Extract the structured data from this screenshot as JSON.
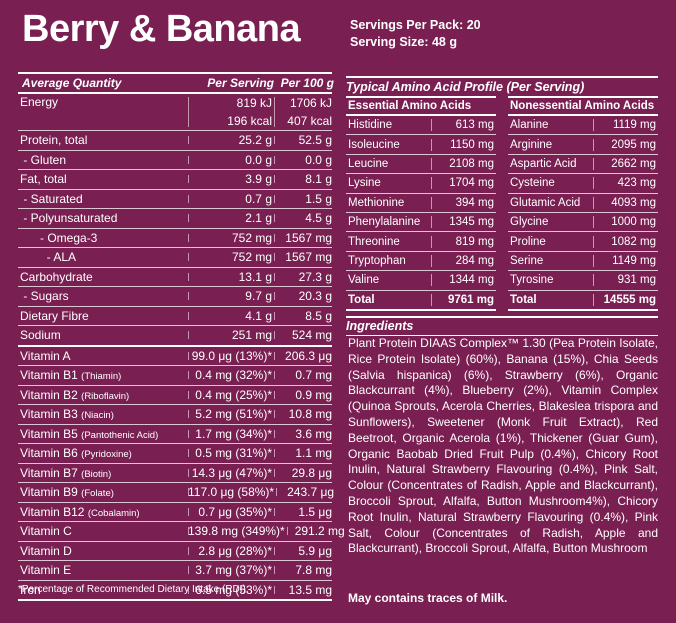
{
  "title": "Berry & Banana",
  "servings_per_pack": "Servings Per Pack: 20",
  "serving_size": "Serving Size: 48 g",
  "nutrition": {
    "headers": [
      "Average Quantity",
      "Per Serving",
      "Per 100 g"
    ],
    "rows": [
      {
        "name": "Energy",
        "serving": [
          "819 kJ",
          "196 kcal"
        ],
        "per100": [
          "1706 kJ",
          "407 kcal"
        ],
        "tall": true
      },
      {
        "name": "Protein, total",
        "serving": "25.2 g",
        "per100": "52.5 g"
      },
      {
        "name": " - Gluten",
        "serving": "0.0 g",
        "per100": "0.0 g"
      },
      {
        "name": "Fat, total",
        "serving": "3.9 g",
        "per100": "8.1 g"
      },
      {
        "name": " - Saturated",
        "serving": "0.7 g",
        "per100": "1.5 g"
      },
      {
        "name": " - Polyunsaturated",
        "serving": "2.1 g",
        "per100": "4.5 g"
      },
      {
        "name": "      - Omega-3",
        "serving": "752 mg",
        "per100": "1567 mg"
      },
      {
        "name": "        - ALA",
        "serving": "752 mg",
        "per100": "1567 mg"
      },
      {
        "name": "Carbohydrate",
        "serving": "13.1 g",
        "per100": "27.3 g"
      },
      {
        "name": " - Sugars",
        "serving": "9.7 g",
        "per100": "20.3 g"
      },
      {
        "name": "Dietary Fibre",
        "serving": "4.1 g",
        "per100": "8.5 g"
      },
      {
        "name": "Sodium",
        "serving": "251 mg",
        "per100": "524 mg",
        "thick": true
      },
      {
        "name": "Vitamin A",
        "serving": "99.0 μg (13%)*",
        "per100": "206.3 μg"
      },
      {
        "name": "Vitamin B1",
        "sub": "(Thiamin)",
        "serving": "0.4 mg (32%)*",
        "per100": "0.7 mg"
      },
      {
        "name": "Vitamin B2",
        "sub": "(Riboflavin)",
        "serving": "0.4 mg (25%)*",
        "per100": "0.9 mg"
      },
      {
        "name": "Vitamin B3",
        "sub": "(Niacin)",
        "serving": "5.2 mg (51%)*",
        "per100": "10.8 mg"
      },
      {
        "name": "Vitamin B5",
        "sub": "(Pantothenic Acid)",
        "serving": "1.7 mg (34%)*",
        "per100": "3.6 mg"
      },
      {
        "name": "Vitamin B6",
        "sub": "(Pyridoxine)",
        "serving": "0.5 mg (31%)*",
        "per100": "1.1 mg"
      },
      {
        "name": "Vitamin B7",
        "sub": "(Biotin)",
        "serving": "14.3 μg (47%)*",
        "per100": "29.8 μg"
      },
      {
        "name": "Vitamin B9",
        "sub": "(Folate)",
        "serving": "117.0 μg (58%)*",
        "per100": "243.7 μg"
      },
      {
        "name": "Vitamin B12",
        "sub": "(Cobalamin)",
        "serving": "0.7 μg (35%)*",
        "per100": "1.5 μg"
      },
      {
        "name": "Vitamin C",
        "serving": "139.8 mg (349%)*",
        "per100": "291.2 mg"
      },
      {
        "name": "Vitamin D",
        "serving": "2.8 μg (28%)*",
        "per100": "5.9 μg"
      },
      {
        "name": "Vitamin E",
        "serving": "3.7 mg (37%)*",
        "per100": "7.8 mg"
      },
      {
        "name": "Iron",
        "serving": "6.5 mg (53%)*",
        "per100": "13.5 mg",
        "thick": true
      }
    ],
    "footnote": "*Percentage of Recommended Dietary Intake (RDI)."
  },
  "amino": {
    "title": "Typical Amino Acid Profile (Per Serving)",
    "essential": {
      "header": "Essential Amino Acids",
      "rows": [
        [
          "Histidine",
          "613 mg"
        ],
        [
          "Isoleucine",
          "1150 mg"
        ],
        [
          "Leucine",
          "2108 mg"
        ],
        [
          "Lysine",
          "1704 mg"
        ],
        [
          "Methionine",
          "394 mg"
        ],
        [
          "Phenylalanine",
          "1345 mg"
        ],
        [
          "Threonine",
          "819 mg"
        ],
        [
          "Tryptophan",
          "284 mg"
        ],
        [
          "Valine",
          "1344 mg"
        ]
      ],
      "total": [
        "Total",
        "9761 mg"
      ]
    },
    "nonessential": {
      "header": "Nonessential Amino Acids",
      "rows": [
        [
          "Alanine",
          "1119 mg"
        ],
        [
          "Arginine",
          "2095 mg"
        ],
        [
          "Aspartic Acid",
          "2662 mg"
        ],
        [
          "Cysteine",
          "423 mg"
        ],
        [
          "Glutamic Acid",
          "4093 mg"
        ],
        [
          "Glycine",
          "1000 mg"
        ],
        [
          "Proline",
          "1082 mg"
        ],
        [
          "Serine",
          "1149 mg"
        ],
        [
          "Tyrosine",
          "931 mg"
        ]
      ],
      "total": [
        "Total",
        "14555 mg"
      ]
    }
  },
  "ingredients": {
    "title": "Ingredients",
    "text": "Plant Protein DIAAS Complex™ 1.30 (Pea Protein Isolate, Rice Protein Isolate) (60%), Banana (15%), Chia Seeds (Salvia hispanica) (6%), Strawberry (6%), Organic Blackcurrant (4%), Blueberry (2%), Vitamin Complex (Quinoa Sprouts, Acerola Cherries, Blakeslea trispora and Sunflowers), Sweetener (Monk Fruit Extract), Red Beetroot, Organic Acerola (1%), Thickener (Guar Gum), Organic Baobab Dried Fruit Pulp (0.4%), Chicory Root Inulin, Natural Strawberry Flavouring (0.4%), Pink Salt, Colour (Concentrates of Radish, Apple and Blackcurrant), Broccoli Sprout, Alfalfa, Button Mushroom4%), Chicory Root Inulin, Natural Strawberry Flavouring (0.4%), Pink Salt, Colour (Concentrates of Radish, Apple and Blackcurrant), Broccoli Sprout, Alfalfa, Button Mushroom"
  },
  "allergy": "May contains traces of Milk.",
  "colors": {
    "background": "#7a1f52",
    "text": "#ffffff"
  }
}
